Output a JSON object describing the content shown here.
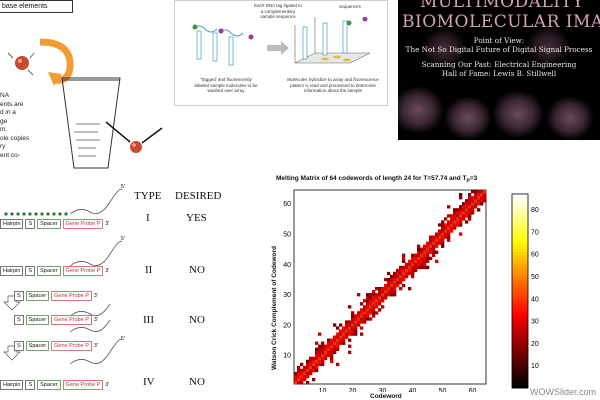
{
  "top_left": {
    "box_label": "base elements",
    "text_lines": [
      "NA",
      "ents are",
      "d in a",
      "ge",
      "m.",
      "ole copies",
      "ry",
      "ent co-"
    ]
  },
  "top_center": {
    "caption_top": [
      "Each DNA tag ligated to",
      "a complementary",
      "sample sequence"
    ],
    "caption_top_right": [
      "sequences"
    ],
    "caption_left": [
      "'Tagged' and fluorescently",
      "labeled sample molecules to be",
      "washed over array"
    ],
    "caption_right": [
      "Molecules hybridize to array and fluorescence",
      "pattern is read and processed to determine",
      "information about the sample"
    ]
  },
  "top_right": {
    "title_line1": "MULTIMODALITY",
    "title_line2": "BIOMOLECULAR IMAG",
    "subtitle_lines": [
      "Point of View:",
      "The Not So Digital Future of Digital Signal Process",
      "Scanning Our Past: Electrical Engineering",
      "Hall of Fame: Lewis B. Stillwell"
    ]
  },
  "table": {
    "header_type": "TYPE",
    "header_desired": "DESIRED",
    "rows": [
      {
        "type": "I",
        "desired": "YES"
      },
      {
        "type": "II",
        "desired": "NO"
      },
      {
        "type": "III",
        "desired": "NO"
      },
      {
        "type": "IV",
        "desired": "NO"
      }
    ],
    "segments": {
      "hairpin": "Hairpin",
      "s": "S",
      "spacer": "Spacer",
      "probe": "Gene Probe P",
      "end5": "5'",
      "end3": "3'"
    }
  },
  "watermark": "WOWSlider.com",
  "chart_data": {
    "type": "heatmap",
    "title": "Melting Matrix of 64 codewords of length 24 for T=57.74 and T",
    "title_sub": "P",
    "title_suffix": "=3",
    "xlabel": "Codeword",
    "ylabel": "Watson Crick Complement of Codeword",
    "xlim": [
      1,
      64
    ],
    "ylim": [
      1,
      64
    ],
    "x_ticks": [
      "10",
      "20",
      "30",
      "40",
      "50",
      "60"
    ],
    "y_ticks": [
      "10",
      "20",
      "30",
      "40",
      "50",
      "60"
    ],
    "colorbar_ticks": [
      "10",
      "20",
      "30",
      "40",
      "50",
      "60",
      "70",
      "80"
    ],
    "colorbar_range": [
      0,
      87
    ],
    "colormap": "hot",
    "description_values": {
      "diagonal_value": 87,
      "near_diagonal_value": 55,
      "off_diagonal_value": 0
    }
  }
}
